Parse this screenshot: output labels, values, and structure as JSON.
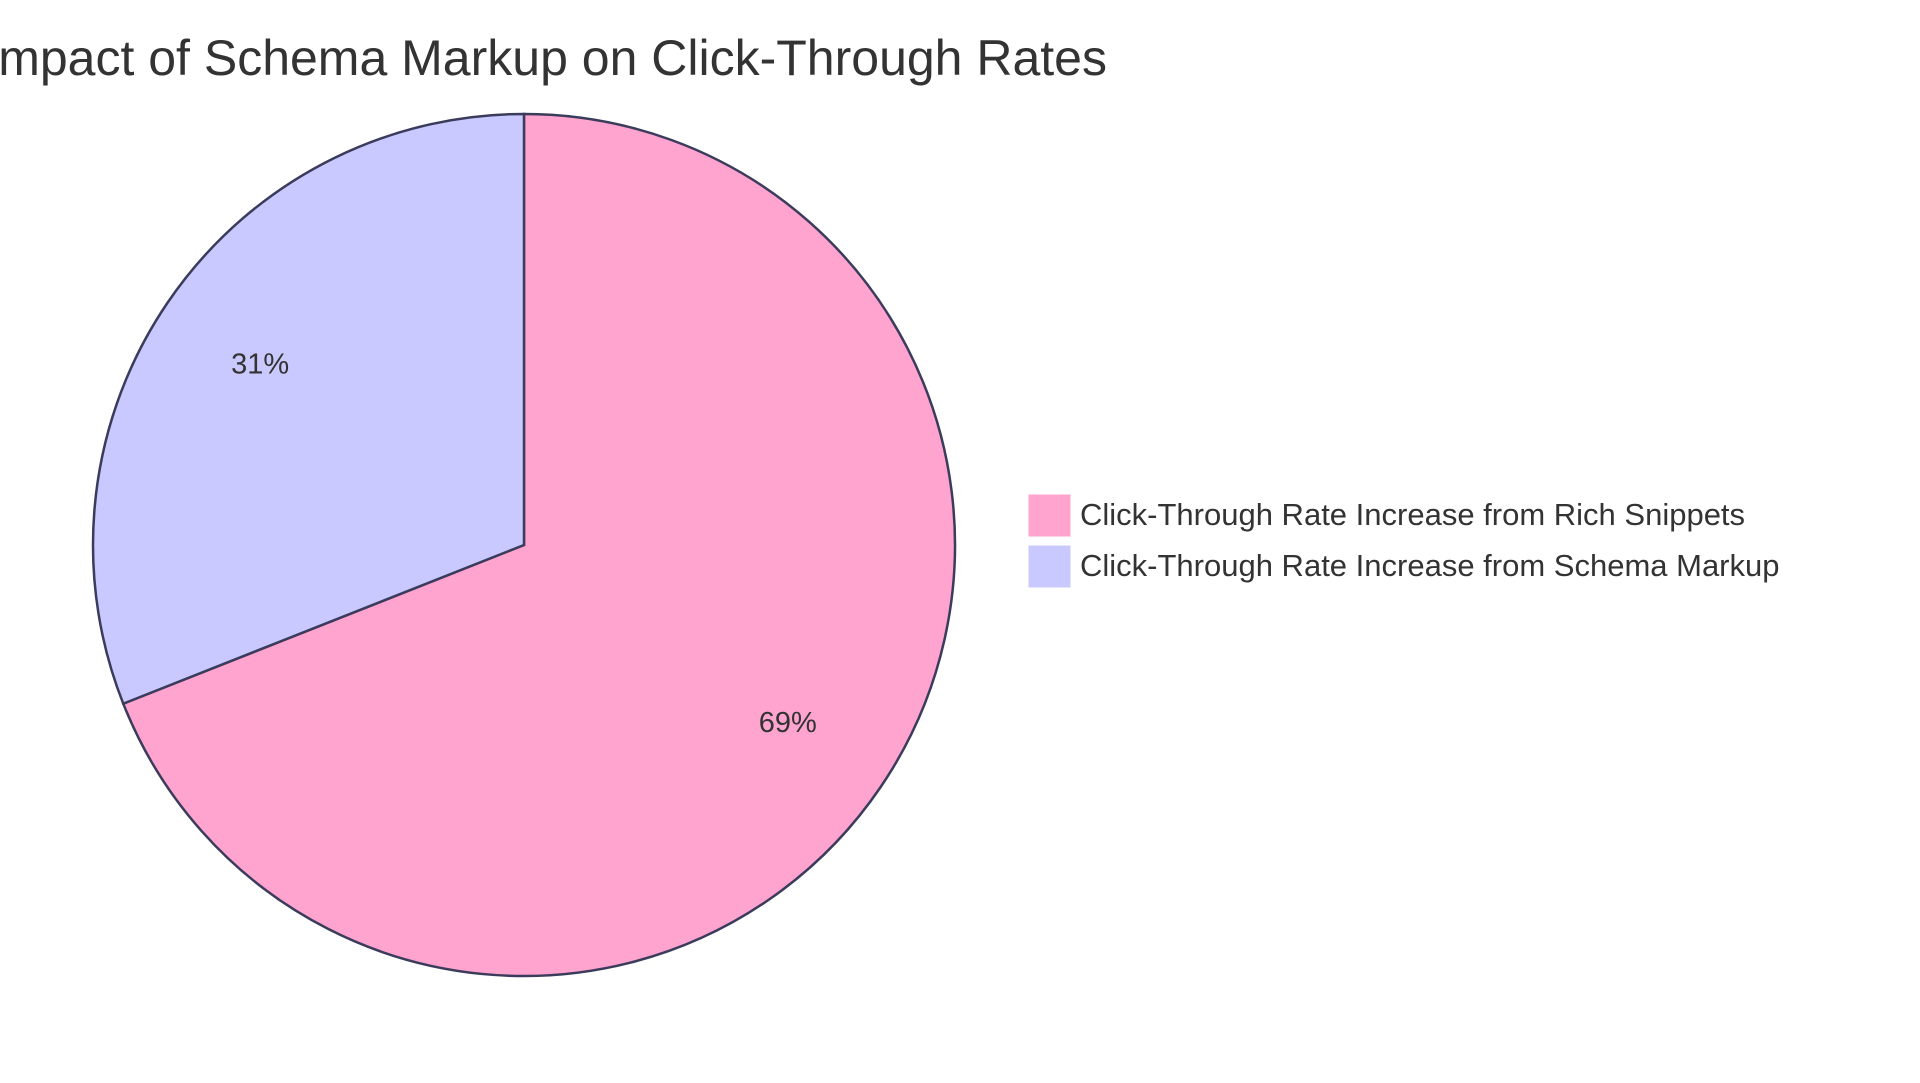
{
  "chart_data": {
    "type": "pie",
    "title": "Impact of Schema Markup on Click-Through Rates",
    "categories": [
      "Click-Through Rate Increase from Rich Snippets",
      "Click-Through Rate Increase from Schema Markup"
    ],
    "values": [
      69,
      31
    ],
    "value_labels": [
      "69%",
      "31%"
    ],
    "colors": [
      "#ffa3cf",
      "#c9c9ff"
    ],
    "legend": "right"
  }
}
